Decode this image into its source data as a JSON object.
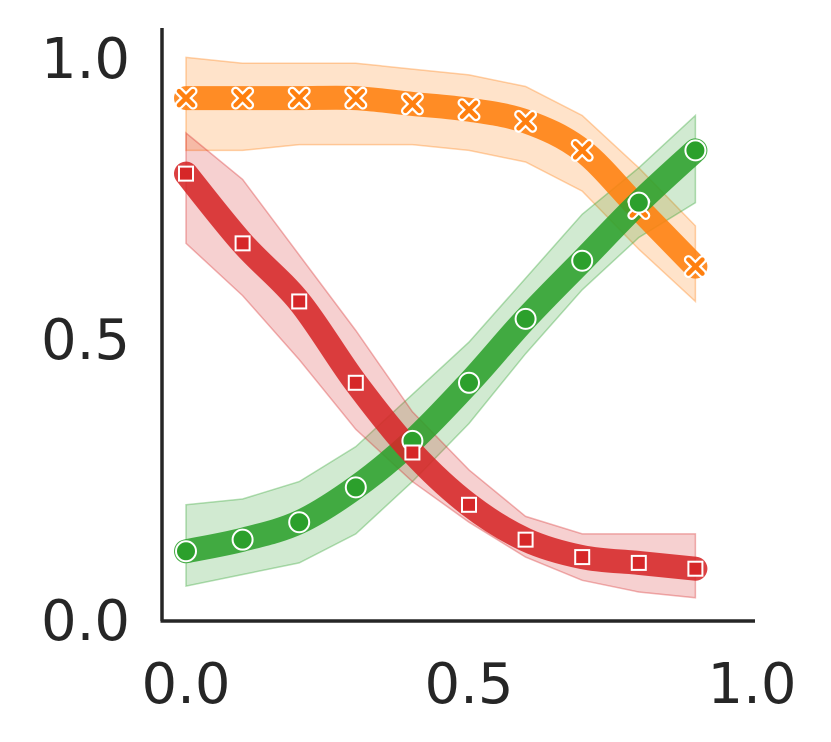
{
  "chart_data": {
    "type": "line",
    "title": "",
    "xlabel": "",
    "ylabel": "",
    "xlim": [
      0.0,
      1.0
    ],
    "ylim": [
      0.0,
      1.0
    ],
    "x_ticks": [
      "0.0",
      "0.5",
      "1.0"
    ],
    "y_ticks": [
      "0.0",
      "0.5",
      "1.0"
    ],
    "grid": false,
    "legend": "none",
    "x": [
      0.0,
      0.1,
      0.2,
      0.3,
      0.4,
      0.5,
      0.6,
      0.7,
      0.8,
      0.9
    ],
    "series": [
      {
        "color": "#ff7f0e",
        "marker": "x",
        "values": [
          0.9,
          0.9,
          0.9,
          0.9,
          0.89,
          0.88,
          0.86,
          0.81,
          0.71,
          0.61
        ],
        "lower": [
          0.81,
          0.81,
          0.82,
          0.82,
          0.82,
          0.81,
          0.79,
          0.74,
          0.64,
          0.55
        ],
        "upper": [
          0.97,
          0.96,
          0.96,
          0.96,
          0.95,
          0.94,
          0.92,
          0.87,
          0.78,
          0.68
        ]
      },
      {
        "color": "#2ca02c",
        "marker": "o",
        "values": [
          0.12,
          0.14,
          0.17,
          0.23,
          0.31,
          0.41,
          0.52,
          0.62,
          0.72,
          0.81
        ],
        "lower": [
          0.06,
          0.08,
          0.1,
          0.15,
          0.24,
          0.34,
          0.46,
          0.57,
          0.66,
          0.72
        ],
        "upper": [
          0.2,
          0.21,
          0.24,
          0.3,
          0.39,
          0.48,
          0.59,
          0.7,
          0.78,
          0.87
        ]
      },
      {
        "color": "#d62728",
        "marker": "s",
        "values": [
          0.77,
          0.65,
          0.55,
          0.41,
          0.29,
          0.2,
          0.14,
          0.11,
          0.1,
          0.09
        ],
        "lower": [
          0.65,
          0.56,
          0.45,
          0.33,
          0.24,
          0.17,
          0.11,
          0.07,
          0.05,
          0.04
        ],
        "upper": [
          0.84,
          0.76,
          0.63,
          0.5,
          0.36,
          0.26,
          0.18,
          0.15,
          0.15,
          0.15
        ]
      }
    ]
  }
}
